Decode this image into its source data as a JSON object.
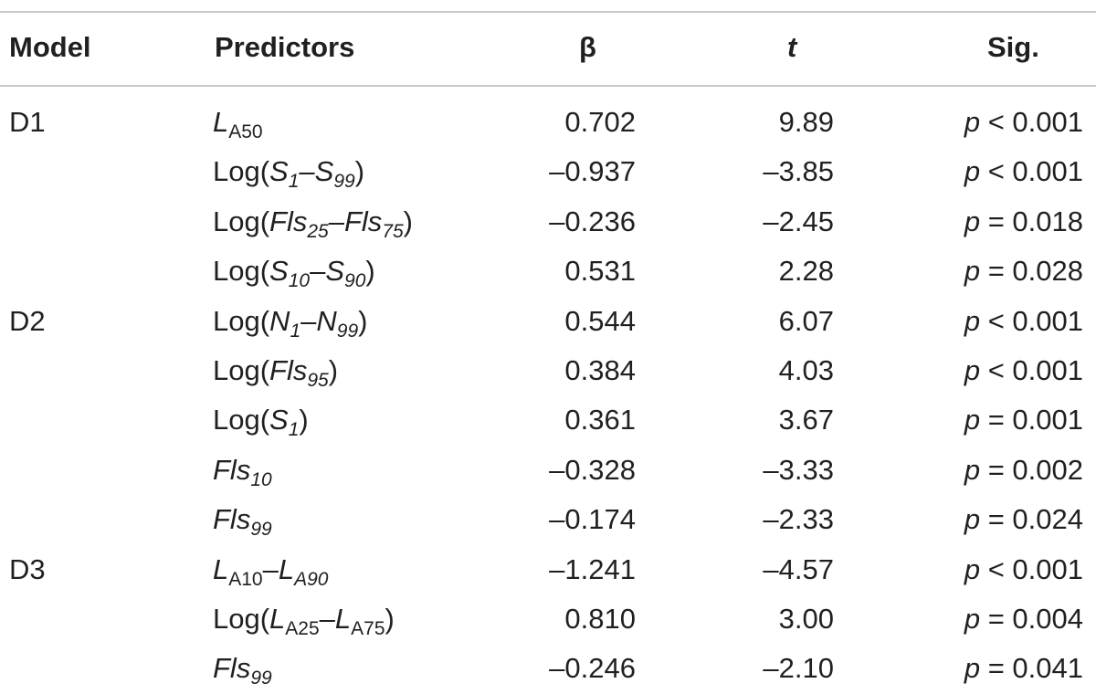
{
  "table": {
    "headers": {
      "model": "Model",
      "predictors": "Predictors",
      "beta": "β",
      "t": "t",
      "sig": "Sig."
    },
    "rows": [
      {
        "model": "D1",
        "pred_parts": [
          [
            "L",
            "i"
          ],
          [
            "A50",
            "s"
          ]
        ],
        "beta": "0.702",
        "t": "9.89",
        "sig_p": "p",
        "sig_rest": " < 0.001"
      },
      {
        "model": "",
        "pred_parts": [
          [
            "Log(",
            ""
          ],
          [
            "S",
            "i"
          ],
          [
            "1",
            "si"
          ],
          [
            "–",
            ""
          ],
          [
            "S",
            "i"
          ],
          [
            "99",
            "si"
          ],
          [
            ")",
            ""
          ]
        ],
        "beta": "–0.937",
        "t": "–3.85",
        "sig_p": "p",
        "sig_rest": " < 0.001"
      },
      {
        "model": "",
        "pred_parts": [
          [
            "Log(",
            ""
          ],
          [
            "Fls",
            "i"
          ],
          [
            "25",
            "si"
          ],
          [
            "–",
            ""
          ],
          [
            "Fls",
            "i"
          ],
          [
            "75",
            "si"
          ],
          [
            ")",
            ""
          ]
        ],
        "beta": "–0.236",
        "t": "–2.45",
        "sig_p": "p",
        "sig_rest": " = 0.018"
      },
      {
        "model": "",
        "pred_parts": [
          [
            "Log(",
            ""
          ],
          [
            "S",
            "i"
          ],
          [
            "10",
            "si"
          ],
          [
            "–",
            ""
          ],
          [
            "S",
            "i"
          ],
          [
            "90",
            "si"
          ],
          [
            ")",
            ""
          ]
        ],
        "beta": "0.531",
        "t": "2.28",
        "sig_p": "p",
        "sig_rest": " = 0.028"
      },
      {
        "model": "D2",
        "pred_parts": [
          [
            "Log(",
            ""
          ],
          [
            "N",
            "i"
          ],
          [
            "1",
            "si"
          ],
          [
            "–",
            ""
          ],
          [
            "N",
            "i"
          ],
          [
            "99",
            "si"
          ],
          [
            ")",
            ""
          ]
        ],
        "beta": "0.544",
        "t": "6.07",
        "sig_p": "p",
        "sig_rest": " < 0.001"
      },
      {
        "model": "",
        "pred_parts": [
          [
            "Log(",
            ""
          ],
          [
            "Fls",
            "i"
          ],
          [
            "95",
            "si"
          ],
          [
            ")",
            ""
          ]
        ],
        "beta": "0.384",
        "t": "4.03",
        "sig_p": "p",
        "sig_rest": " < 0.001"
      },
      {
        "model": "",
        "pred_parts": [
          [
            "Log(",
            ""
          ],
          [
            "S",
            "i"
          ],
          [
            "1",
            "si"
          ],
          [
            ")",
            ""
          ]
        ],
        "beta": "0.361",
        "t": "3.67",
        "sig_p": "p",
        "sig_rest": " = 0.001"
      },
      {
        "model": "",
        "pred_parts": [
          [
            "Fls",
            "i"
          ],
          [
            "10",
            "si"
          ]
        ],
        "beta": "–0.328",
        "t": "–3.33",
        "sig_p": "p",
        "sig_rest": " = 0.002"
      },
      {
        "model": "",
        "pred_parts": [
          [
            "Fls",
            "i"
          ],
          [
            "99",
            "si"
          ]
        ],
        "beta": "–0.174",
        "t": "–2.33",
        "sig_p": "p",
        "sig_rest": " = 0.024"
      },
      {
        "model": "D3",
        "pred_parts": [
          [
            "L",
            "i"
          ],
          [
            "A10",
            "s"
          ],
          [
            "–",
            ""
          ],
          [
            "L",
            "i"
          ],
          [
            "A90",
            "si"
          ]
        ],
        "beta": "–1.241",
        "t": "–4.57",
        "sig_p": "p",
        "sig_rest": " < 0.001"
      },
      {
        "model": "",
        "pred_parts": [
          [
            "Log(",
            ""
          ],
          [
            "L",
            "i"
          ],
          [
            "A25",
            "s"
          ],
          [
            "–",
            ""
          ],
          [
            "L",
            "i"
          ],
          [
            "A75",
            "s"
          ],
          [
            ")",
            ""
          ]
        ],
        "beta": "0.810",
        "t": "3.00",
        "sig_p": "p",
        "sig_rest": " = 0.004"
      },
      {
        "model": "",
        "pred_parts": [
          [
            "Fls",
            "i"
          ],
          [
            "99",
            "si"
          ]
        ],
        "beta": "–0.246",
        "t": "–2.10",
        "sig_p": "p",
        "sig_rest": " = 0.041"
      }
    ]
  }
}
